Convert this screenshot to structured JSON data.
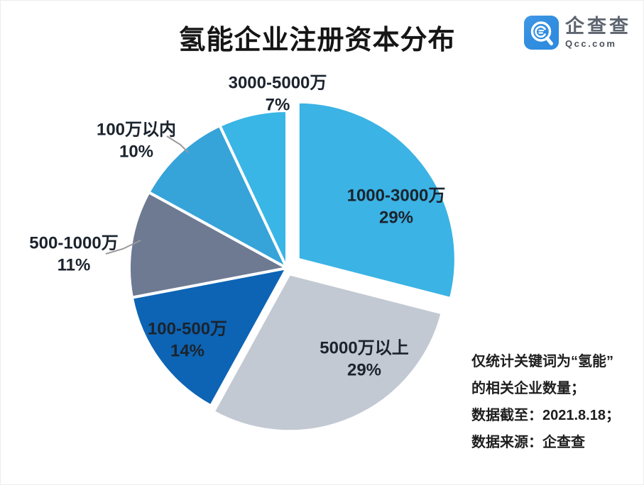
{
  "title": "氢能企业注册资本分布",
  "logo": {
    "name": "企查查",
    "domain": "Qcc.com",
    "brand_color": "#2f8fe5"
  },
  "chart_data": {
    "type": "pie",
    "title": "氢能企业注册资本分布",
    "unit": "percent",
    "direction": "clockwise",
    "start_angle_deg": 0,
    "legend_position": "none",
    "slices": [
      {
        "label": "1000-3000万",
        "value": 29,
        "pct_label": "29%",
        "color": "#3BB3E4",
        "explode": 20,
        "label_placement": "inside"
      },
      {
        "label": "5000万以上",
        "value": 29,
        "pct_label": "29%",
        "color": "#C2C9D3",
        "explode": 9,
        "label_placement": "inside"
      },
      {
        "label": "100-500万",
        "value": 14,
        "pct_label": "14%",
        "color": "#0D64B4",
        "explode": 0,
        "label_placement": "inside"
      },
      {
        "label": "500-1000万",
        "value": 11,
        "pct_label": "11%",
        "color": "#6E7A92",
        "explode": 0,
        "label_placement": "outside"
      },
      {
        "label": "100万以内",
        "value": 10,
        "pct_label": "10%",
        "color": "#36A3D9",
        "explode": 0,
        "label_placement": "outside"
      },
      {
        "label": "3000-5000万",
        "value": 7,
        "pct_label": "7%",
        "color": "#39B5E6",
        "explode": 0,
        "label_placement": "outside"
      }
    ]
  },
  "notes": {
    "lines": [
      "仅统计关键词为“氢能”",
      "的相关企业数量；",
      "数据截至：2021.8.18；",
      "数据来源：企查查"
    ]
  }
}
